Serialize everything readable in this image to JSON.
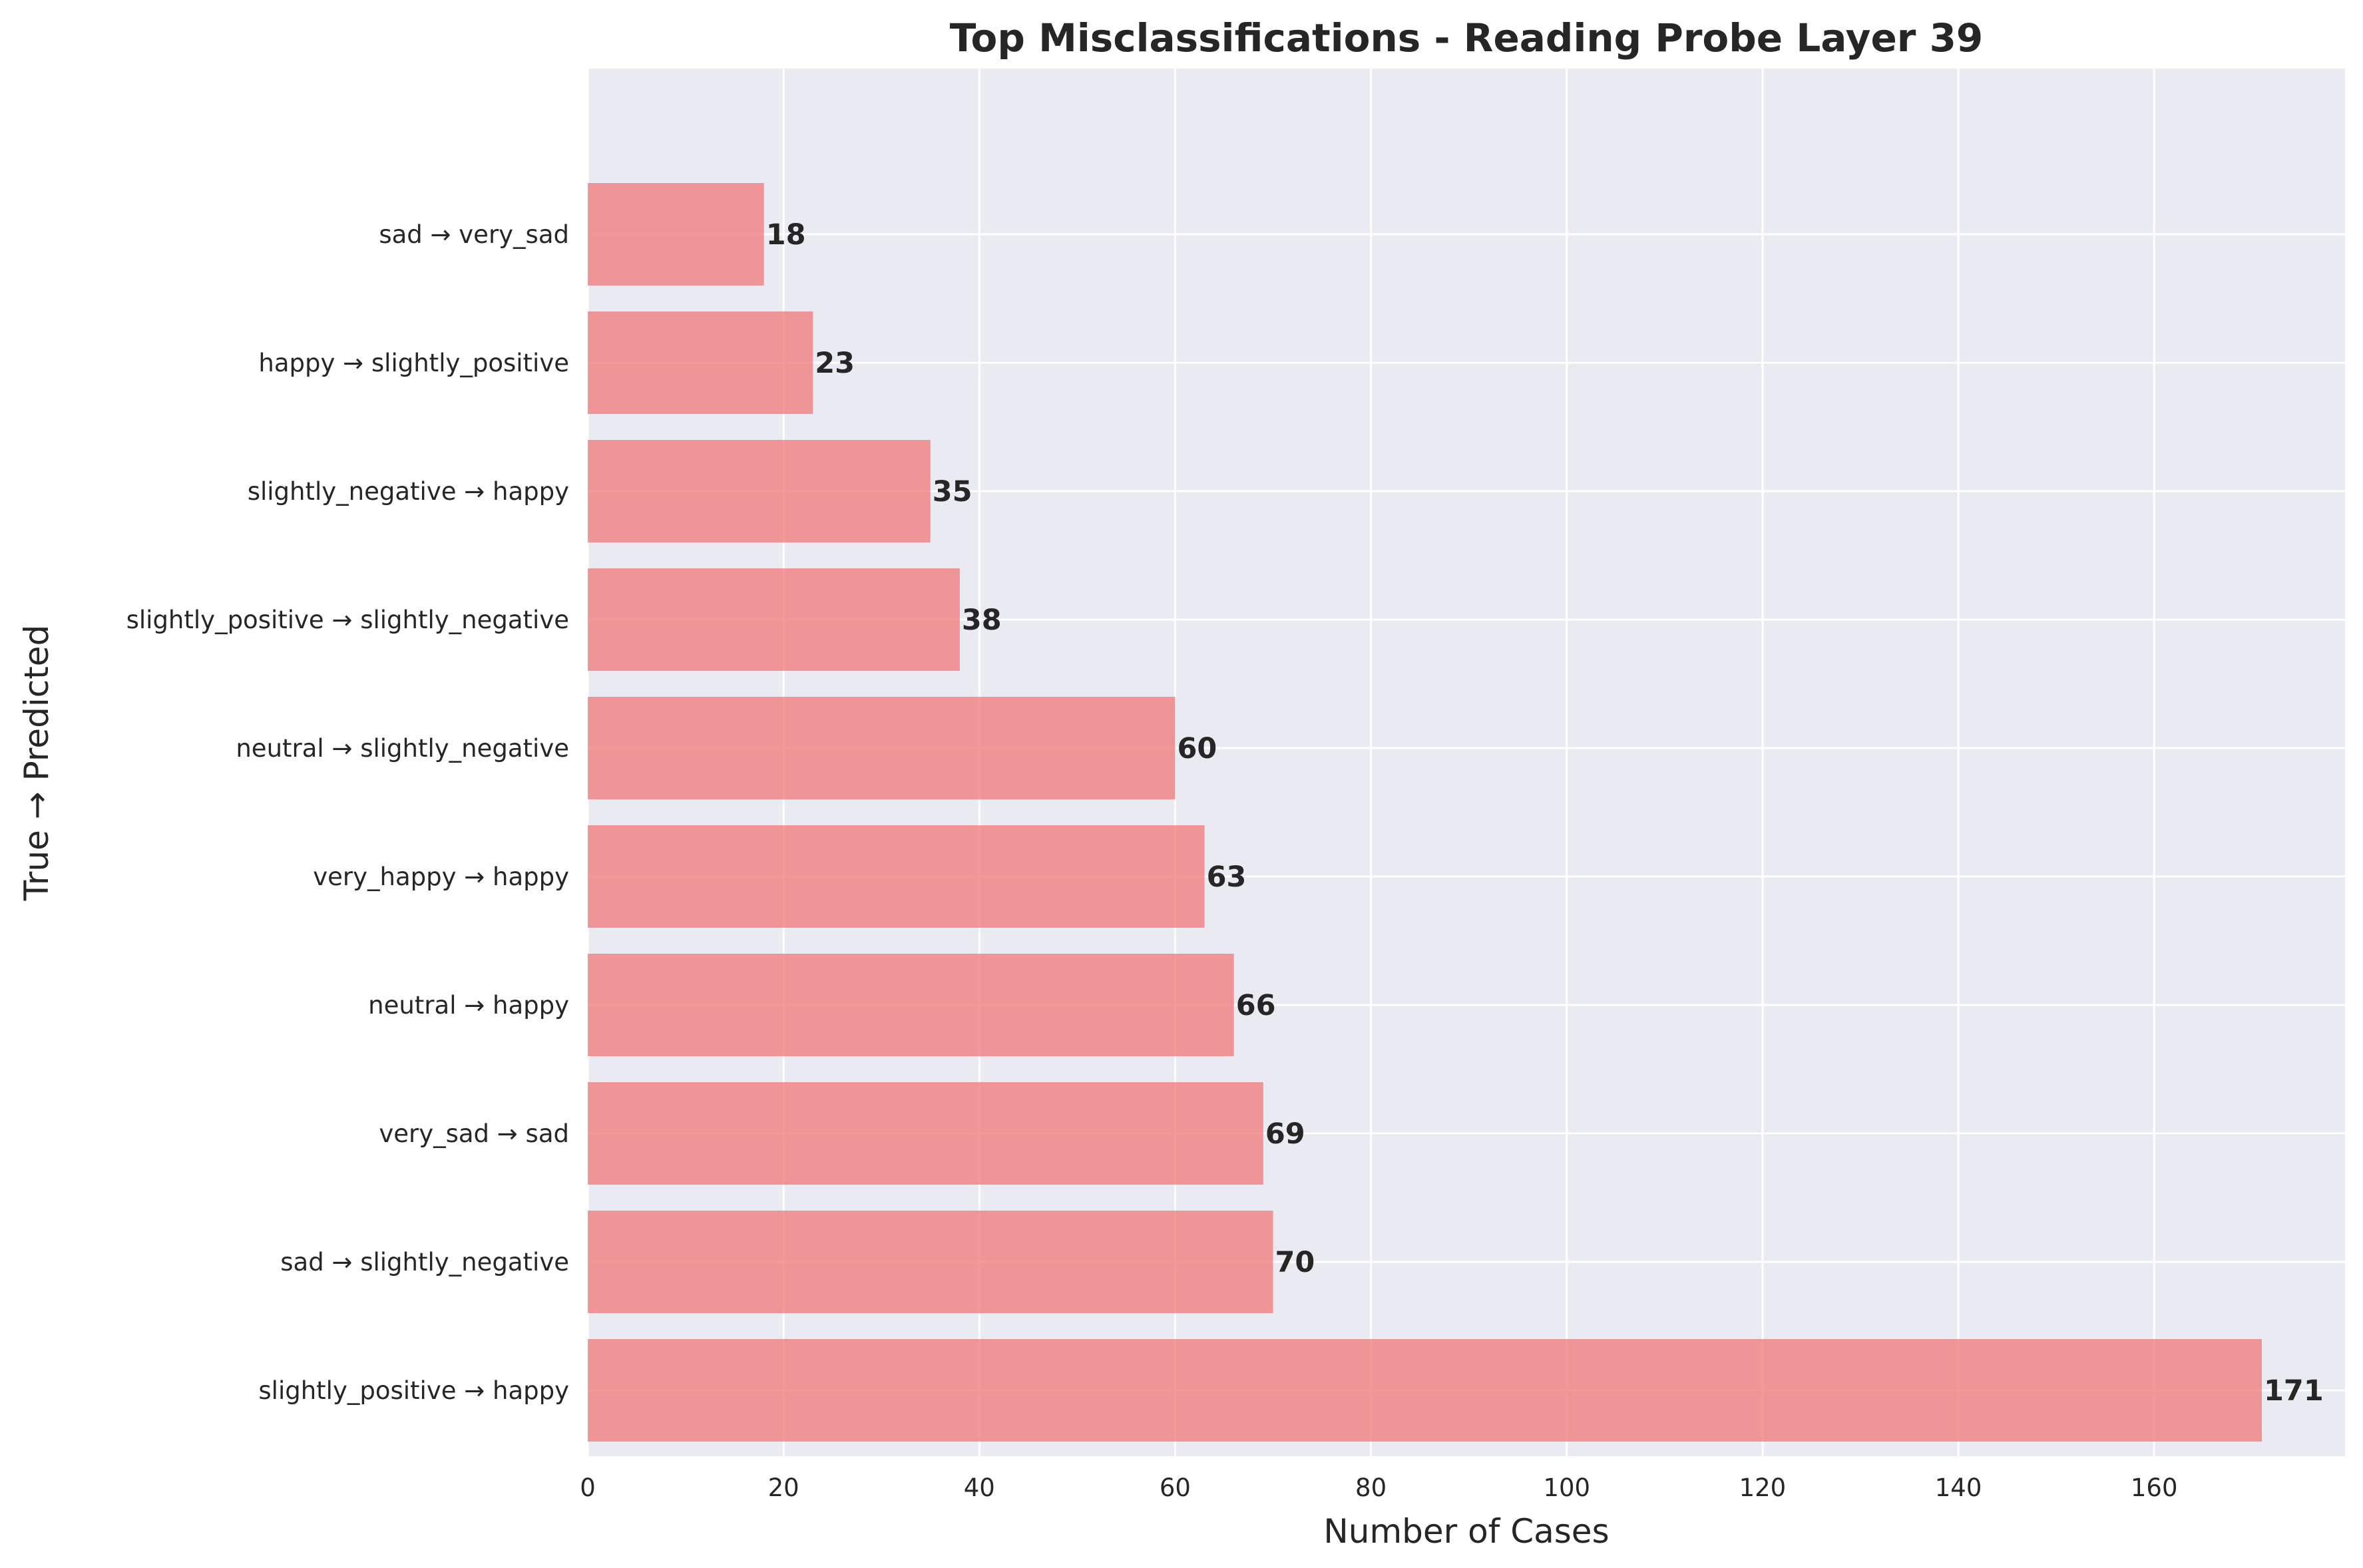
{
  "chart_data": {
    "type": "bar",
    "orientation": "horizontal",
    "title": "Top Misclassifications - Reading Probe Layer 39",
    "xlabel": "Number of Cases",
    "ylabel": "True → Predicted",
    "categories": [
      "slightly_positive → happy",
      "sad → slightly_negative",
      "very_sad → sad",
      "neutral → happy",
      "very_happy → happy",
      "neutral → slightly_negative",
      "slightly_positive → slightly_negative",
      "slightly_negative → happy",
      "happy → slightly_positive",
      "sad → very_sad"
    ],
    "values": [
      171,
      70,
      69,
      66,
      63,
      60,
      38,
      35,
      23,
      18
    ],
    "xlim": [
      0,
      179.5
    ],
    "xticks": [
      0,
      20,
      40,
      60,
      80,
      100,
      120,
      140,
      160
    ],
    "grid": true,
    "legend": "none",
    "colors": {
      "bar": "#F08080",
      "background": "#EAEAF2",
      "grid": "#FFFFFF",
      "text": "#262626"
    }
  }
}
